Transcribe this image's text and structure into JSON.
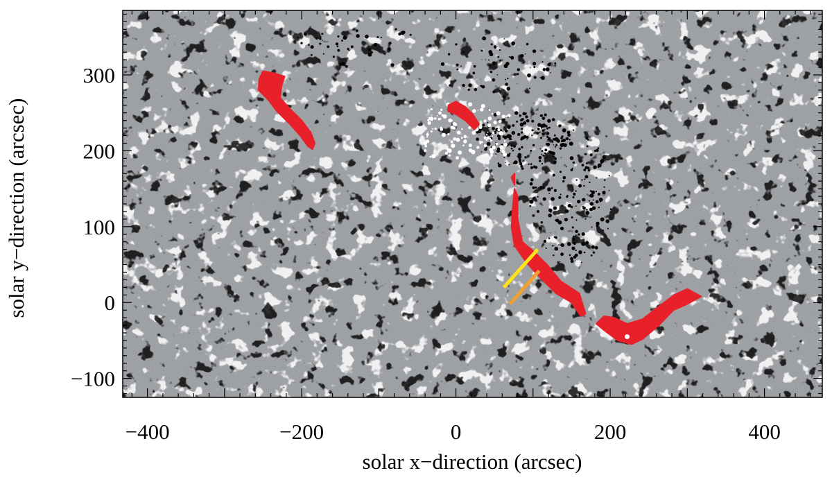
{
  "chart_data": {
    "type": "scatter",
    "title": "",
    "xlabel": "solar x−direction (arcsec)",
    "ylabel": "solar y−direction (arcsec)",
    "xlim": [
      -432,
      475
    ],
    "ylim": [
      -125,
      385
    ],
    "x_ticks": [
      -400,
      -200,
      0,
      200,
      400
    ],
    "x_tick_labels": [
      "−400",
      "−200",
      "0",
      "200",
      "400"
    ],
    "y_ticks": [
      -100,
      0,
      100,
      200,
      300
    ],
    "y_tick_labels": [
      "−100",
      "0",
      "100",
      "200",
      "300"
    ],
    "x_minor_step": 20,
    "y_minor_step": 10,
    "grid": false,
    "background": "grayscale magnetogram",
    "colors": {
      "background_gray": "#8f9296",
      "positive_polarity": "#ffffff",
      "negative_polarity": "#000000",
      "filament": "#e8202a",
      "cut_yellow": "#ffe31a",
      "cut_orange": "#f0a030"
    },
    "series": [
      {
        "kind": "filament-region",
        "points": [
          [
            -255,
            295
          ],
          [
            -250,
            305
          ],
          [
            -235,
            302
          ],
          [
            -222,
            298
          ],
          [
            -226,
            286
          ],
          [
            -228,
            270
          ],
          [
            -215,
            255
          ],
          [
            -200,
            240
          ],
          [
            -188,
            224
          ],
          [
            -183,
            210
          ],
          [
            -186,
            202
          ],
          [
            -192,
            206
          ],
          [
            -202,
            220
          ],
          [
            -216,
            236
          ],
          [
            -232,
            252
          ],
          [
            -244,
            268
          ],
          [
            -256,
            280
          ]
        ]
      },
      {
        "kind": "filament-region",
        "points": [
          [
            -10,
            260
          ],
          [
            0,
            265
          ],
          [
            12,
            258
          ],
          [
            22,
            248
          ],
          [
            30,
            235
          ],
          [
            24,
            228
          ],
          [
            12,
            240
          ],
          [
            0,
            248
          ],
          [
            -10,
            252
          ]
        ]
      },
      {
        "kind": "filament-region",
        "points": [
          [
            72,
            165
          ],
          [
            76,
            170
          ],
          [
            76,
            155
          ]
        ]
      },
      {
        "kind": "filament-region",
        "points": [
          [
            76,
            150
          ],
          [
            80,
            140
          ],
          [
            80,
            110
          ],
          [
            86,
            80
          ],
          [
            100,
            68
          ],
          [
            118,
            50
          ],
          [
            136,
            28
          ],
          [
            160,
            12
          ],
          [
            168,
            -15
          ],
          [
            162,
            -18
          ],
          [
            150,
            0
          ],
          [
            130,
            12
          ],
          [
            110,
            32
          ],
          [
            92,
            52
          ],
          [
            76,
            75
          ],
          [
            72,
            100
          ],
          [
            74,
            130
          ]
        ]
      },
      {
        "kind": "filament-region",
        "points": [
          [
            192,
            -18
          ],
          [
            205,
            -20
          ],
          [
            222,
            -28
          ],
          [
            242,
            -22
          ],
          [
            262,
            -6
          ],
          [
            283,
            10
          ],
          [
            300,
            18
          ],
          [
            318,
            8
          ],
          [
            300,
            -2
          ],
          [
            282,
            -10
          ],
          [
            263,
            -30
          ],
          [
            242,
            -48
          ],
          [
            228,
            -55
          ],
          [
            210,
            -50
          ],
          [
            194,
            -38
          ],
          [
            182,
            -28
          ]
        ]
      },
      {
        "kind": "cut-line",
        "color_key": "cut_yellow",
        "points": [
          [
            62,
            20
          ],
          [
            106,
            70
          ]
        ]
      },
      {
        "kind": "cut-line",
        "color_key": "cut_orange",
        "points": [
          [
            70,
            -2
          ],
          [
            108,
            42
          ]
        ]
      }
    ]
  }
}
